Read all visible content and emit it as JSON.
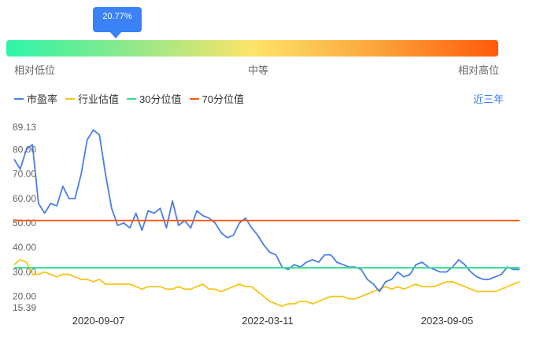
{
  "indicator": {
    "percentile_label": "20.77%",
    "percentile": 0.2077,
    "low_label": "相对低位",
    "mid_label": "中等",
    "high_label": "相对高位"
  },
  "legend": {
    "pe_label": "市盈率",
    "industry_label": "行业估值",
    "p30_label": "30分位值",
    "p70_label": "70分位值"
  },
  "range_label": "近三年",
  "colors": {
    "pe": "#4a7ee8",
    "industry": "#f5c518",
    "p30": "#2fe08c",
    "p70": "#ff5a0a",
    "accent": "#3b82f6"
  },
  "chart_data": {
    "type": "line",
    "x_labels": [
      "2020-09-07",
      "2022-03-11",
      "2023-09-05"
    ],
    "ylim": [
      15.39,
      89.13
    ],
    "y_ticks": [
      "89.13",
      "80.00",
      "70.00",
      "60.00",
      "50.00",
      "40.00",
      "30.00",
      "20.00",
      "15.39"
    ],
    "grid": false,
    "legend_position": "top-left",
    "reference_lines": [
      {
        "name": "30分位值",
        "value": 31.7
      },
      {
        "name": "70分位值",
        "value": 51.0
      }
    ],
    "series": [
      {
        "name": "市盈率",
        "values": [
          76,
          72,
          80,
          82,
          58,
          54,
          58,
          57,
          65,
          60,
          60,
          70,
          84,
          88,
          86,
          70,
          56,
          49,
          50,
          48,
          54,
          47,
          55,
          54,
          56,
          48,
          59,
          49,
          51,
          48,
          55,
          53,
          52,
          50,
          46,
          44,
          45,
          50,
          52,
          48,
          45,
          41,
          38,
          37,
          32,
          31,
          33,
          32,
          34,
          35,
          34,
          37,
          37,
          34,
          33,
          32,
          32,
          31,
          27,
          25,
          22,
          26,
          27,
          30,
          28,
          29,
          33,
          34,
          32,
          31,
          30,
          30,
          32,
          35,
          33,
          30,
          28,
          27,
          27,
          28,
          29,
          32,
          31,
          31
        ]
      },
      {
        "name": "行业估值",
        "values": [
          33,
          35,
          34,
          29,
          29,
          30,
          29,
          28,
          29,
          29,
          28,
          27,
          27,
          26,
          27,
          25,
          25,
          25,
          25,
          25,
          24,
          23,
          24,
          24,
          24,
          23,
          23,
          24,
          23,
          23,
          24,
          25,
          23,
          23,
          22,
          23,
          24,
          25,
          24,
          24,
          22,
          20,
          18,
          17,
          16,
          17,
          17,
          18,
          18,
          17,
          18,
          19,
          20,
          20,
          20,
          19,
          19,
          20,
          21,
          22,
          23,
          24,
          23,
          24,
          23,
          24,
          25,
          24,
          24,
          24,
          25,
          26,
          26,
          25,
          24,
          23,
          22,
          22,
          22,
          22,
          23,
          24,
          25,
          26
        ]
      }
    ]
  }
}
